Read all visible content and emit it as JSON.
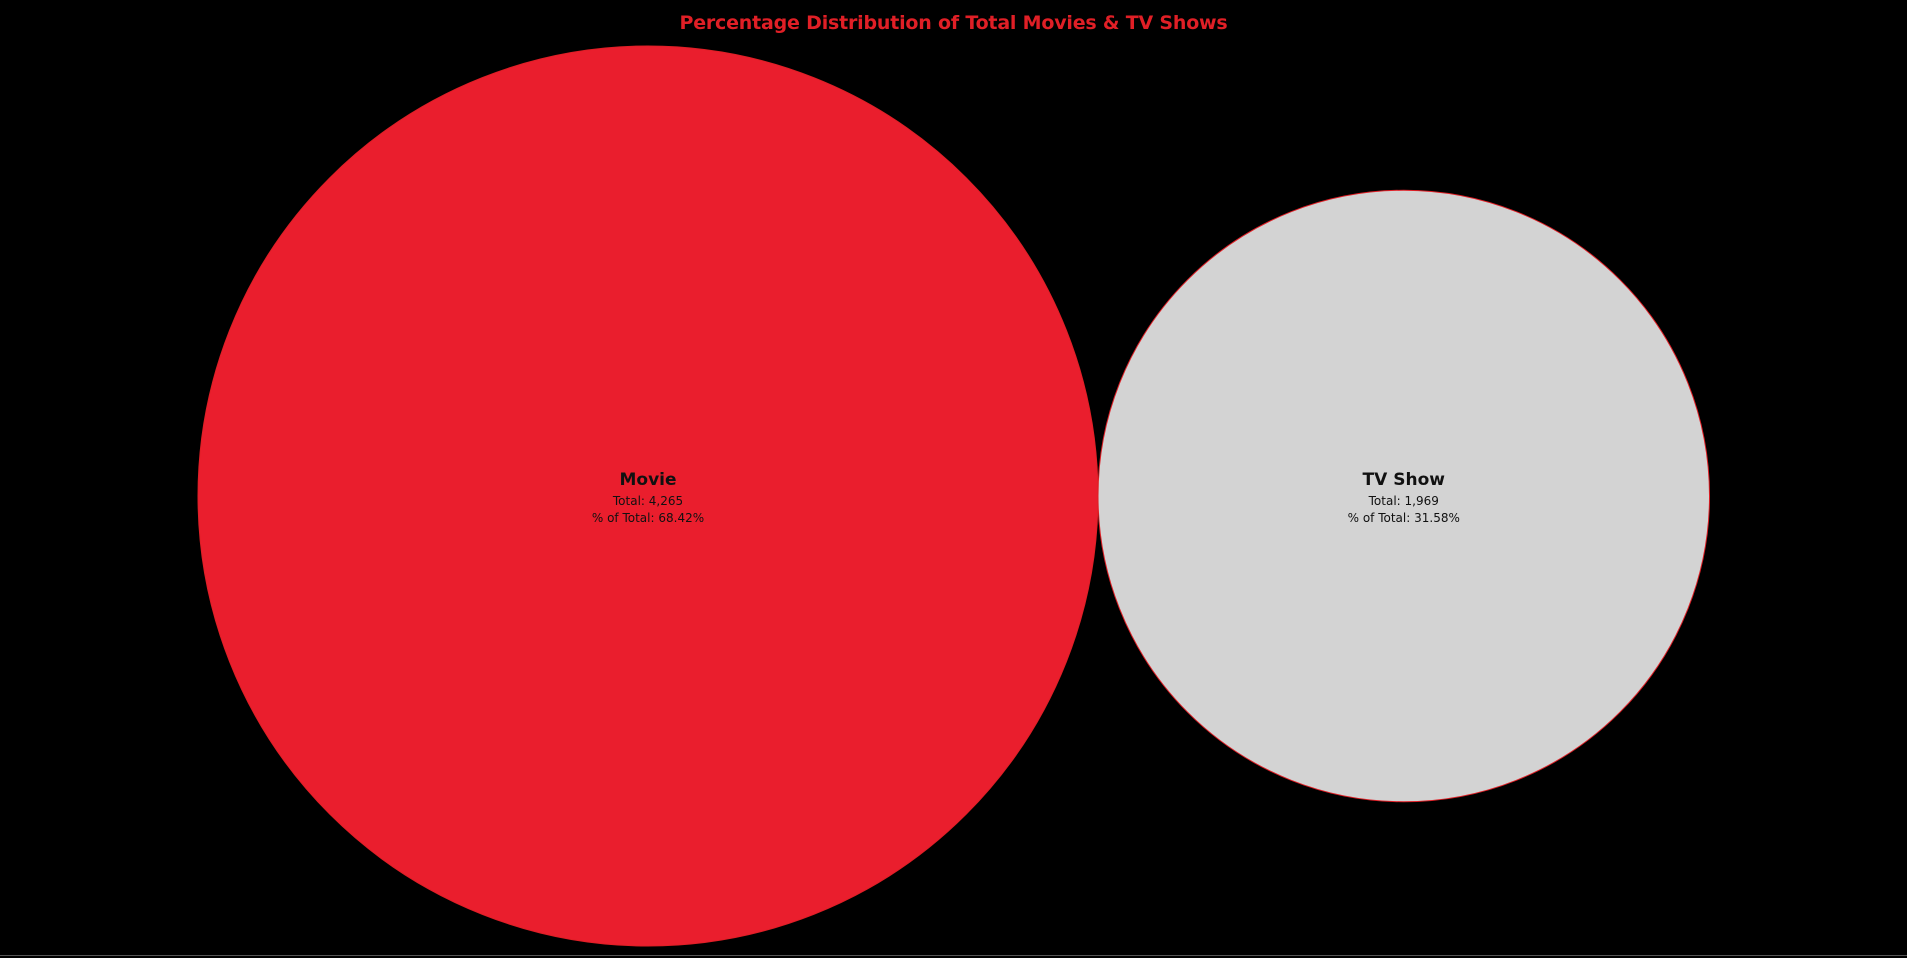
{
  "colors": {
    "background": "#000000",
    "title": "#e01f26",
    "movie": "#ea1e2d",
    "tv_show": "#d3d3d3",
    "outline": "#e01f26"
  },
  "chart_data": {
    "type": "bubble",
    "title": "Percentage Distribution of Total Movies & TV Shows",
    "categories": [
      "Movie",
      "TV Show"
    ],
    "values": [
      4265,
      1969
    ],
    "percent_of_total": [
      68.42,
      31.58
    ],
    "labels": [
      {
        "name": "Movie",
        "total": "Total: 4,265",
        "percent": "% of Total: 68.42%",
        "color_key": "movie"
      },
      {
        "name": "TV Show",
        "total": "Total: 1,969",
        "percent": "% of Total: 31.58%",
        "color_key": "tv_show"
      }
    ],
    "legend": "none",
    "grid": false
  }
}
